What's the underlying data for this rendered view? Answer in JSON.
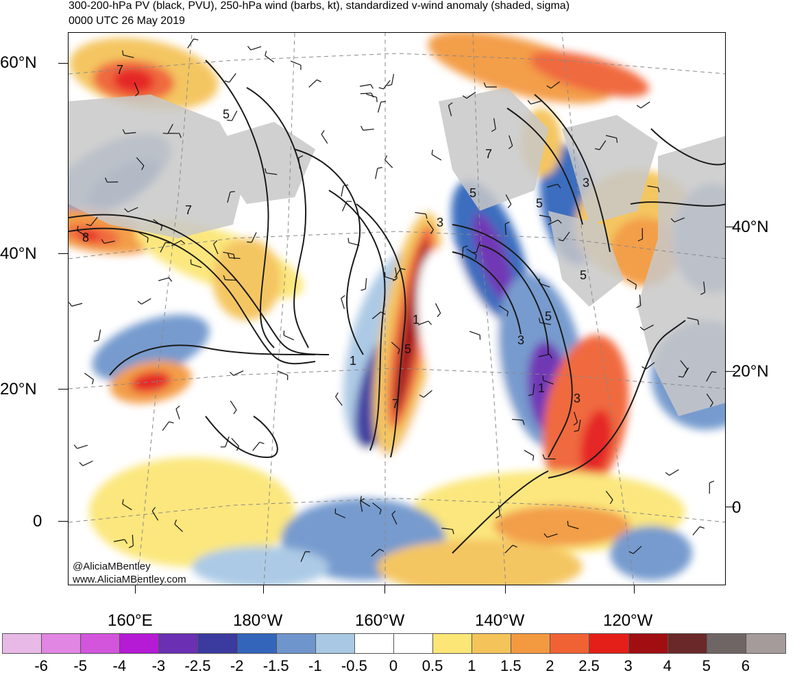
{
  "header": {
    "title_line1": "300-200-hPa PV (black, PVU), 250-hPa wind (barbs, kt), standardized v-wind anomaly (shaded, sigma)",
    "title_line2": "0000 UTC 26 May 2019"
  },
  "map": {
    "lat_labels_left": [
      "60°N",
      "40°N",
      "20°N",
      "0"
    ],
    "lat_labels_right": [
      "40°N",
      "20°N",
      "0"
    ],
    "lon_labels_bottom": [
      "160°E",
      "180°W",
      "160°W",
      "140°W",
      "120°W"
    ],
    "pv_contour_labels": [
      "7",
      "5",
      "7",
      "8",
      "5",
      "3",
      "7",
      "5",
      "3",
      "1",
      "5",
      "7",
      "1",
      "5",
      "3",
      "3",
      "1",
      "5"
    ]
  },
  "credit": {
    "line1": "@AliciaMBentley",
    "line2": "www.AliciaMBentley.com"
  },
  "colorbar": {
    "colors": [
      "#e8b9e6",
      "#e186e3",
      "#d255dc",
      "#b51ad4",
      "#6a2fb3",
      "#3a3a9f",
      "#3366bb",
      "#6f96cc",
      "#a8c8e4",
      "#ffffff",
      "#ffffff",
      "#fbe676",
      "#f4c35a",
      "#f3993f",
      "#f06234",
      "#e41f1a",
      "#a10e12",
      "#6b2828",
      "#6f6565",
      "#a59b9b"
    ],
    "labels": [
      "-6",
      "-5",
      "-4",
      "-3",
      "-2.5",
      "-2",
      "-1.5",
      "-1",
      "-0.5",
      "0",
      "0.5",
      "1",
      "1.5",
      "2",
      "2.5",
      "3",
      "4",
      "5",
      "6"
    ]
  }
}
